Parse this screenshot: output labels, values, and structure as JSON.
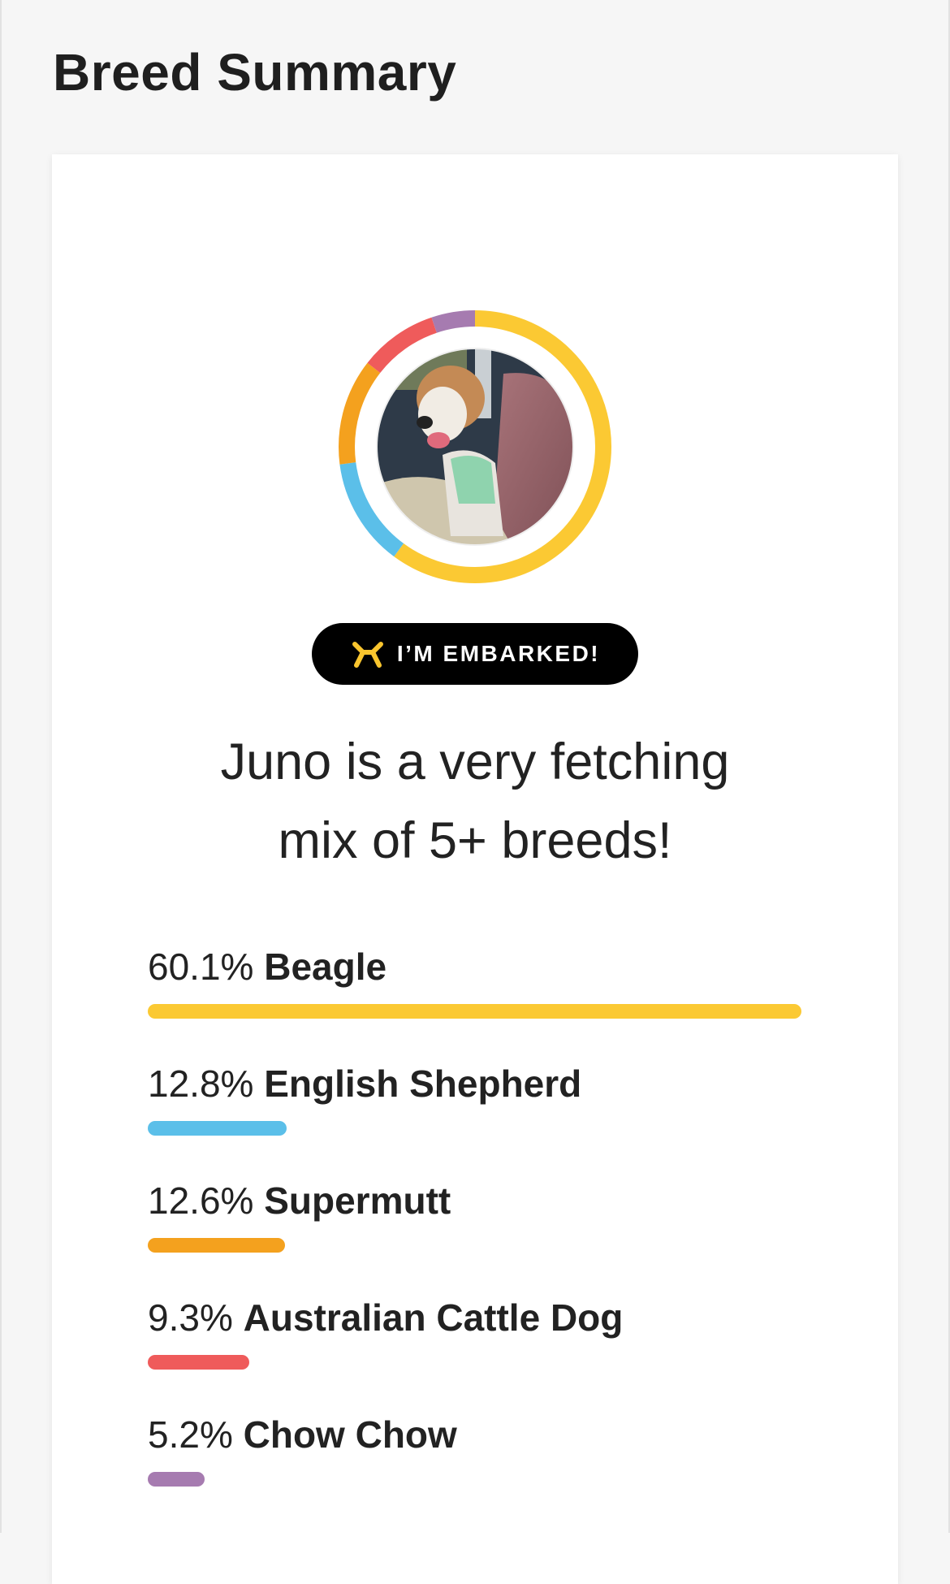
{
  "page": {
    "title": "Breed Summary"
  },
  "badge": {
    "label": "I’M EMBARKED!",
    "icon": "embark-logo-icon",
    "icon_color": "#F9C52E"
  },
  "headline": {
    "line1": "Juno is a very fetching",
    "line2": "mix of 5+ breeds!"
  },
  "avatar": {
    "alt": "dog photo"
  },
  "chart_data": {
    "type": "pie",
    "style": "donut",
    "categories": [
      "Beagle",
      "English Shepherd",
      "Supermutt",
      "Australian Cattle Dog",
      "Chow Chow"
    ],
    "values": [
      60.1,
      12.8,
      12.6,
      9.3,
      5.2
    ],
    "colors": [
      "#FBC933",
      "#5BBFE9",
      "#F4A11E",
      "#EF5B5B",
      "#A67BB0"
    ]
  },
  "breeds": [
    {
      "percent": "60.1%",
      "name": "Beagle",
      "value": 60.1,
      "color": "#FBC933"
    },
    {
      "percent": "12.8%",
      "name": "English Shepherd",
      "value": 12.8,
      "color": "#5BBFE9"
    },
    {
      "percent": "12.6%",
      "name": "Supermutt",
      "value": 12.6,
      "color": "#F4A11E"
    },
    {
      "percent": "9.3%",
      "name": "Australian Cattle Dog",
      "value": 9.3,
      "color": "#EF5B5B"
    },
    {
      "percent": "5.2%",
      "name": "Chow Chow",
      "value": 5.2,
      "color": "#A67BB0"
    }
  ]
}
